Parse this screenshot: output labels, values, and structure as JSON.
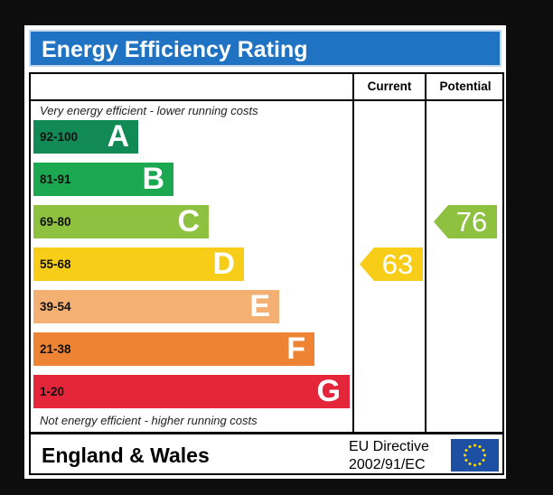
{
  "title": "Energy Efficiency Rating",
  "columns": {
    "current": "Current",
    "potential": "Potential"
  },
  "captions": {
    "top": "Very energy efficient - lower running costs",
    "bottom": "Not energy efficient - higher running costs"
  },
  "colors": {
    "title_bar": "#1f73c2",
    "A": "#128a55",
    "B": "#1ba850",
    "C": "#8dc13f",
    "D": "#f7cd17",
    "E": "#f4b073",
    "F": "#ee8433",
    "G": "#e4253a"
  },
  "chart_data": {
    "type": "bar",
    "categories": [
      "A",
      "B",
      "C",
      "D",
      "E",
      "F",
      "G"
    ],
    "ranges": [
      "92-100",
      "81-91",
      "69-80",
      "55-68",
      "39-54",
      "21-38",
      "1-20"
    ],
    "current": {
      "value": 63,
      "band": "D"
    },
    "potential": {
      "value": 76,
      "band": "C"
    }
  },
  "footer": {
    "region": "England & Wales",
    "directive_line1": "EU Directive",
    "directive_line2": "2002/91/EC",
    "flag_icon": "eu-flag-icon"
  }
}
